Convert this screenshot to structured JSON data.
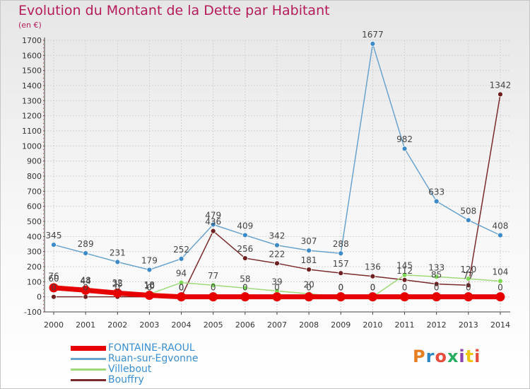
{
  "header": {
    "title": "Evolution du Montant de la Dette par Habitant",
    "unit": "(en €)"
  },
  "logo": {
    "text": "Proxiti",
    "colors": [
      "#e67e22",
      "#2e86c1",
      "#e74c3c",
      "#27ae60",
      "#8e44ad",
      "#f1c40f",
      "#e74c3c"
    ]
  },
  "chart_data": {
    "type": "line",
    "title": "Evolution du Montant de la Dette par Habitant",
    "subtitle": "(en €)",
    "xlabel": "",
    "ylabel": "",
    "ylim": [
      -100,
      1700
    ],
    "grid": true,
    "legend": "bottom-left",
    "x": [
      2000,
      2001,
      2002,
      2003,
      2004,
      2005,
      2006,
      2007,
      2008,
      2009,
      2010,
      2011,
      2012,
      2013,
      2014
    ],
    "yticks": [
      -100,
      0,
      100,
      200,
      300,
      400,
      500,
      600,
      700,
      800,
      900,
      1000,
      1100,
      1200,
      1300,
      1400,
      1500,
      1600,
      1700
    ],
    "series": [
      {
        "name": "FONTAINE-RAOUL",
        "color": "#e60000",
        "marker": "#e60000",
        "width": 7,
        "radius": 6.5,
        "values": [
          60,
          44,
          25,
          10,
          0,
          0,
          0,
          0,
          0,
          0,
          0,
          0,
          0,
          0,
          0
        ],
        "labels": [
          "60",
          "44",
          "25",
          "10",
          "0",
          "0",
          "0",
          "0",
          "0",
          "0",
          "0",
          "0",
          "0",
          "0",
          "0"
        ]
      },
      {
        "name": "Ruan-sur-Egvonne",
        "color": "#6aa3cc",
        "marker": "#3c8ac8",
        "width": 1.5,
        "radius": 3.5,
        "values": [
          345,
          289,
          231,
          179,
          252,
          479,
          409,
          342,
          307,
          288,
          1677,
          982,
          633,
          508,
          408
        ],
        "labels": [
          "345",
          "289",
          "231",
          "179",
          "252",
          "479",
          "409",
          "342",
          "307",
          "288",
          "1677",
          "982",
          "633",
          "508",
          "408"
        ]
      },
      {
        "name": "Villebout",
        "color": "#9ed97a",
        "marker": "#7ed957",
        "width": 1.5,
        "radius": 3.5,
        "values": [
          76,
          48,
          32,
          18,
          94,
          77,
          58,
          39,
          20,
          0,
          0,
          145,
          133,
          120,
          104
        ],
        "labels": [
          "76",
          "48",
          "32",
          "18",
          "94",
          "77",
          "58",
          "39",
          "20",
          "0",
          "0",
          "145",
          "133",
          "120",
          "104"
        ]
      },
      {
        "name": "Bouffry",
        "color": "#7a2a2a",
        "marker": "#6e1f1f",
        "width": 1.5,
        "radius": 3.5,
        "values": [
          0,
          0,
          0,
          0,
          0,
          436,
          256,
          222,
          181,
          157,
          136,
          112,
          85,
          77,
          1342
        ],
        "labels": [
          "0",
          "0",
          "0",
          "0",
          "0",
          "436",
          "256",
          "222",
          "181",
          "157",
          "136",
          "112",
          "85",
          "77",
          "1342"
        ]
      }
    ]
  }
}
